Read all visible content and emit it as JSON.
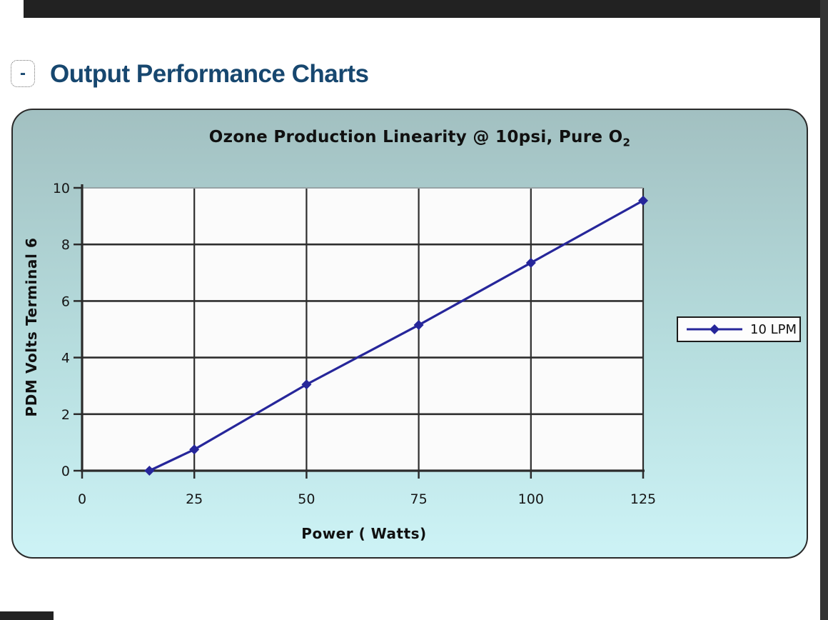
{
  "page": {
    "background": "#ffffff",
    "frame_bar_color": "#222222",
    "section_header": {
      "collapse_label": "-",
      "title": "Output Performance Charts",
      "title_color": "#17476f"
    }
  },
  "chart_data": {
    "type": "line",
    "title": "Ozone Production Linearity @ 10psi, Pure O2",
    "title_main": "Ozone Production Linearity @ 10psi, Pure O",
    "title_subscript": "2",
    "xlabel": "Power ( Watts)",
    "ylabel": "PDM Volts  Terminal 6",
    "xlim": [
      0,
      125
    ],
    "ylim": [
      0,
      10
    ],
    "xticks": [
      0,
      25,
      50,
      75,
      100,
      125
    ],
    "yticks": [
      0,
      2,
      4,
      6,
      8,
      10
    ],
    "grid": true,
    "plot_background": "#fbfbfb",
    "gridline_color": "#2e2e2e",
    "axis_color": "#2b2b2b",
    "top_border_color": "#97a4a6",
    "tick_label_color": "#161616",
    "panel_gradient": [
      "#a2c0c1",
      "#b7dedf",
      "#cdf3f6"
    ],
    "series": [
      {
        "name": "10 LPM",
        "color": "#26269a",
        "marker": "diamond",
        "points": [
          [
            15,
            0
          ],
          [
            25,
            0.75
          ],
          [
            50,
            3.05
          ],
          [
            75,
            5.15
          ],
          [
            100,
            7.35
          ],
          [
            125,
            9.55
          ]
        ]
      }
    ],
    "legend": {
      "position": "right-middle",
      "entries": [
        {
          "label": "10 LPM",
          "color": "#26269a",
          "marker": "diamond"
        }
      ]
    }
  }
}
